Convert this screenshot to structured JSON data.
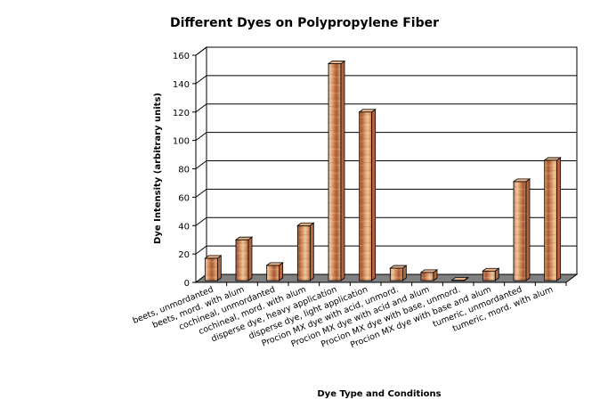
{
  "chart_data": {
    "type": "bar",
    "title": "Different Dyes on Polypropylene Fiber",
    "xlabel": "Dye Type and Conditions",
    "ylabel": "Dye Intensity (arbitrary units)",
    "ylim": [
      0,
      160
    ],
    "yticks": [
      0,
      20,
      40,
      60,
      80,
      100,
      120,
      140,
      160
    ],
    "grid": true,
    "categories": [
      "beets, unmordanted",
      "beets, mord. with alum",
      "cochineal, unmordanted",
      "cochineal, mord. with alum",
      "disperse dye, heavy application",
      "disperse dye, light application",
      "Procion MX dye with acid, unmord.",
      "Procion MX dye with acid and alum",
      "Procion MX dye with base, unmord.",
      "Procion MX dye with base and alum",
      "tumeric, unmordanted",
      "tumeric, mord. with alum"
    ],
    "values": [
      17,
      30,
      12,
      40,
      154,
      120,
      10,
      7,
      0.5,
      8,
      71,
      86
    ],
    "colors": {
      "bar_front": "#d89268",
      "bar_light": "#e9c49a",
      "bar_dark": "#a55b36",
      "bar_top": "#eab48c",
      "bar_side": "#b4673e",
      "floor": "#808080",
      "wall": "#ffffff",
      "gridline": "#000000"
    }
  }
}
